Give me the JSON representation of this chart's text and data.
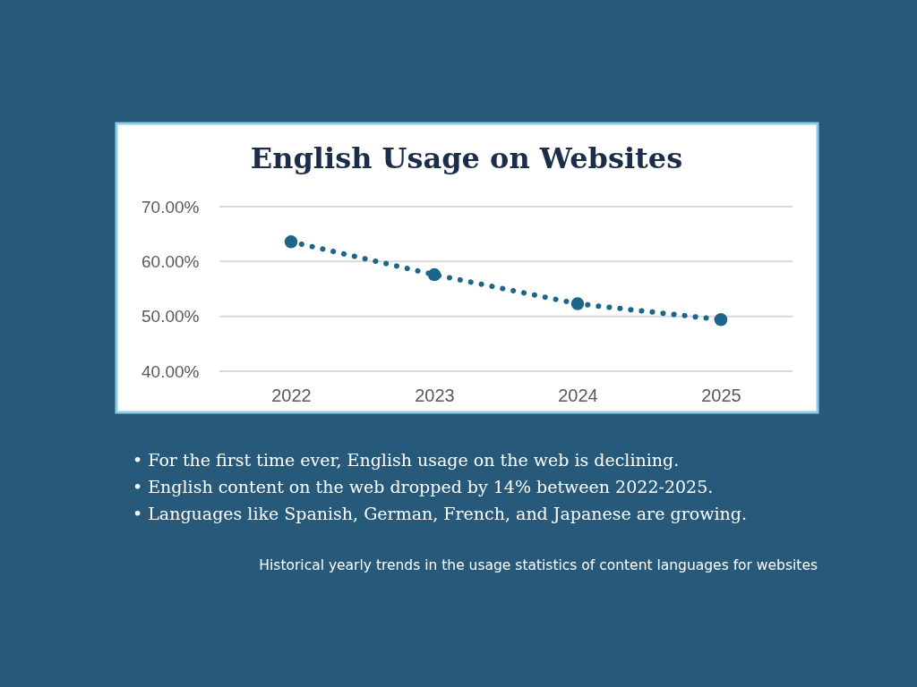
{
  "chart_data": {
    "type": "line",
    "title": "English Usage on Websites",
    "categories": [
      "2022",
      "2023",
      "2024",
      "2025"
    ],
    "series": [
      {
        "color": "#1d6689",
        "values": [
          63.6,
          57.6,
          52.3,
          49.4
        ]
      }
    ],
    "ylim": [
      40,
      70
    ],
    "yticks": [
      {
        "value": 40,
        "label": "40.00%"
      },
      {
        "value": 50,
        "label": "50.00%"
      },
      {
        "value": 60,
        "label": "60.00%"
      },
      {
        "value": 70,
        "label": "70.00%"
      }
    ],
    "grid": "y",
    "marker": "circle",
    "line_style": "dotted",
    "annotations": [
      "• For the first time ever, English usage on the web is declining.",
      "• English content on the web dropped by 14% between 2022-2025.",
      "• Languages like Spanish, German, French, and Japanese are growing.",
      "Historical yearly trends in the usage statistics of content languages for websites"
    ]
  }
}
